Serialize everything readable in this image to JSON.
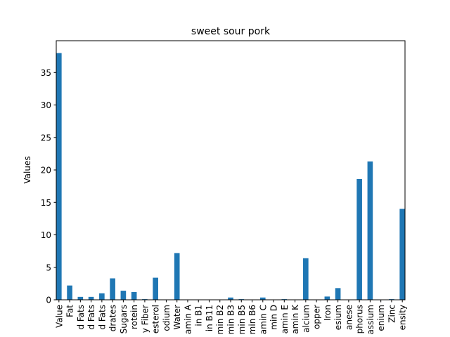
{
  "chart_data": {
    "type": "bar",
    "title": "sweet sour pork",
    "xlabel": "",
    "ylabel": "Values",
    "ylim": [
      0,
      39.9
    ],
    "yticks": [
      0,
      5,
      10,
      15,
      20,
      25,
      30,
      35
    ],
    "grid": false,
    "bar_color": "#1f77b4",
    "categories": [
      "Value",
      "Fat",
      "d Fats",
      "d Fats",
      "d Fats",
      "drates",
      "Sugars",
      "rotein",
      "y Fiber",
      "esterol",
      "odium",
      "Water",
      "amin A",
      "in B1",
      "in B11",
      "min B2",
      "min B3",
      "min B5",
      "min B6",
      "amin C",
      "min D",
      "amin E",
      "amin K",
      "alcium",
      "opper",
      "Iron",
      "esium",
      "anese",
      "phorus",
      "assium",
      "enium",
      "Zinc",
      "ensity"
    ],
    "values": [
      38.0,
      2.2,
      0.45,
      0.45,
      1.0,
      3.3,
      1.4,
      1.2,
      0.1,
      3.4,
      0.0,
      7.2,
      0.0,
      0.0,
      0.0,
      0.0,
      0.35,
      0.1,
      0.05,
      0.35,
      0.0,
      0.1,
      0.0,
      6.4,
      0.0,
      0.5,
      1.8,
      0.0,
      18.6,
      21.3,
      0.0,
      0.1,
      14.0
    ]
  }
}
